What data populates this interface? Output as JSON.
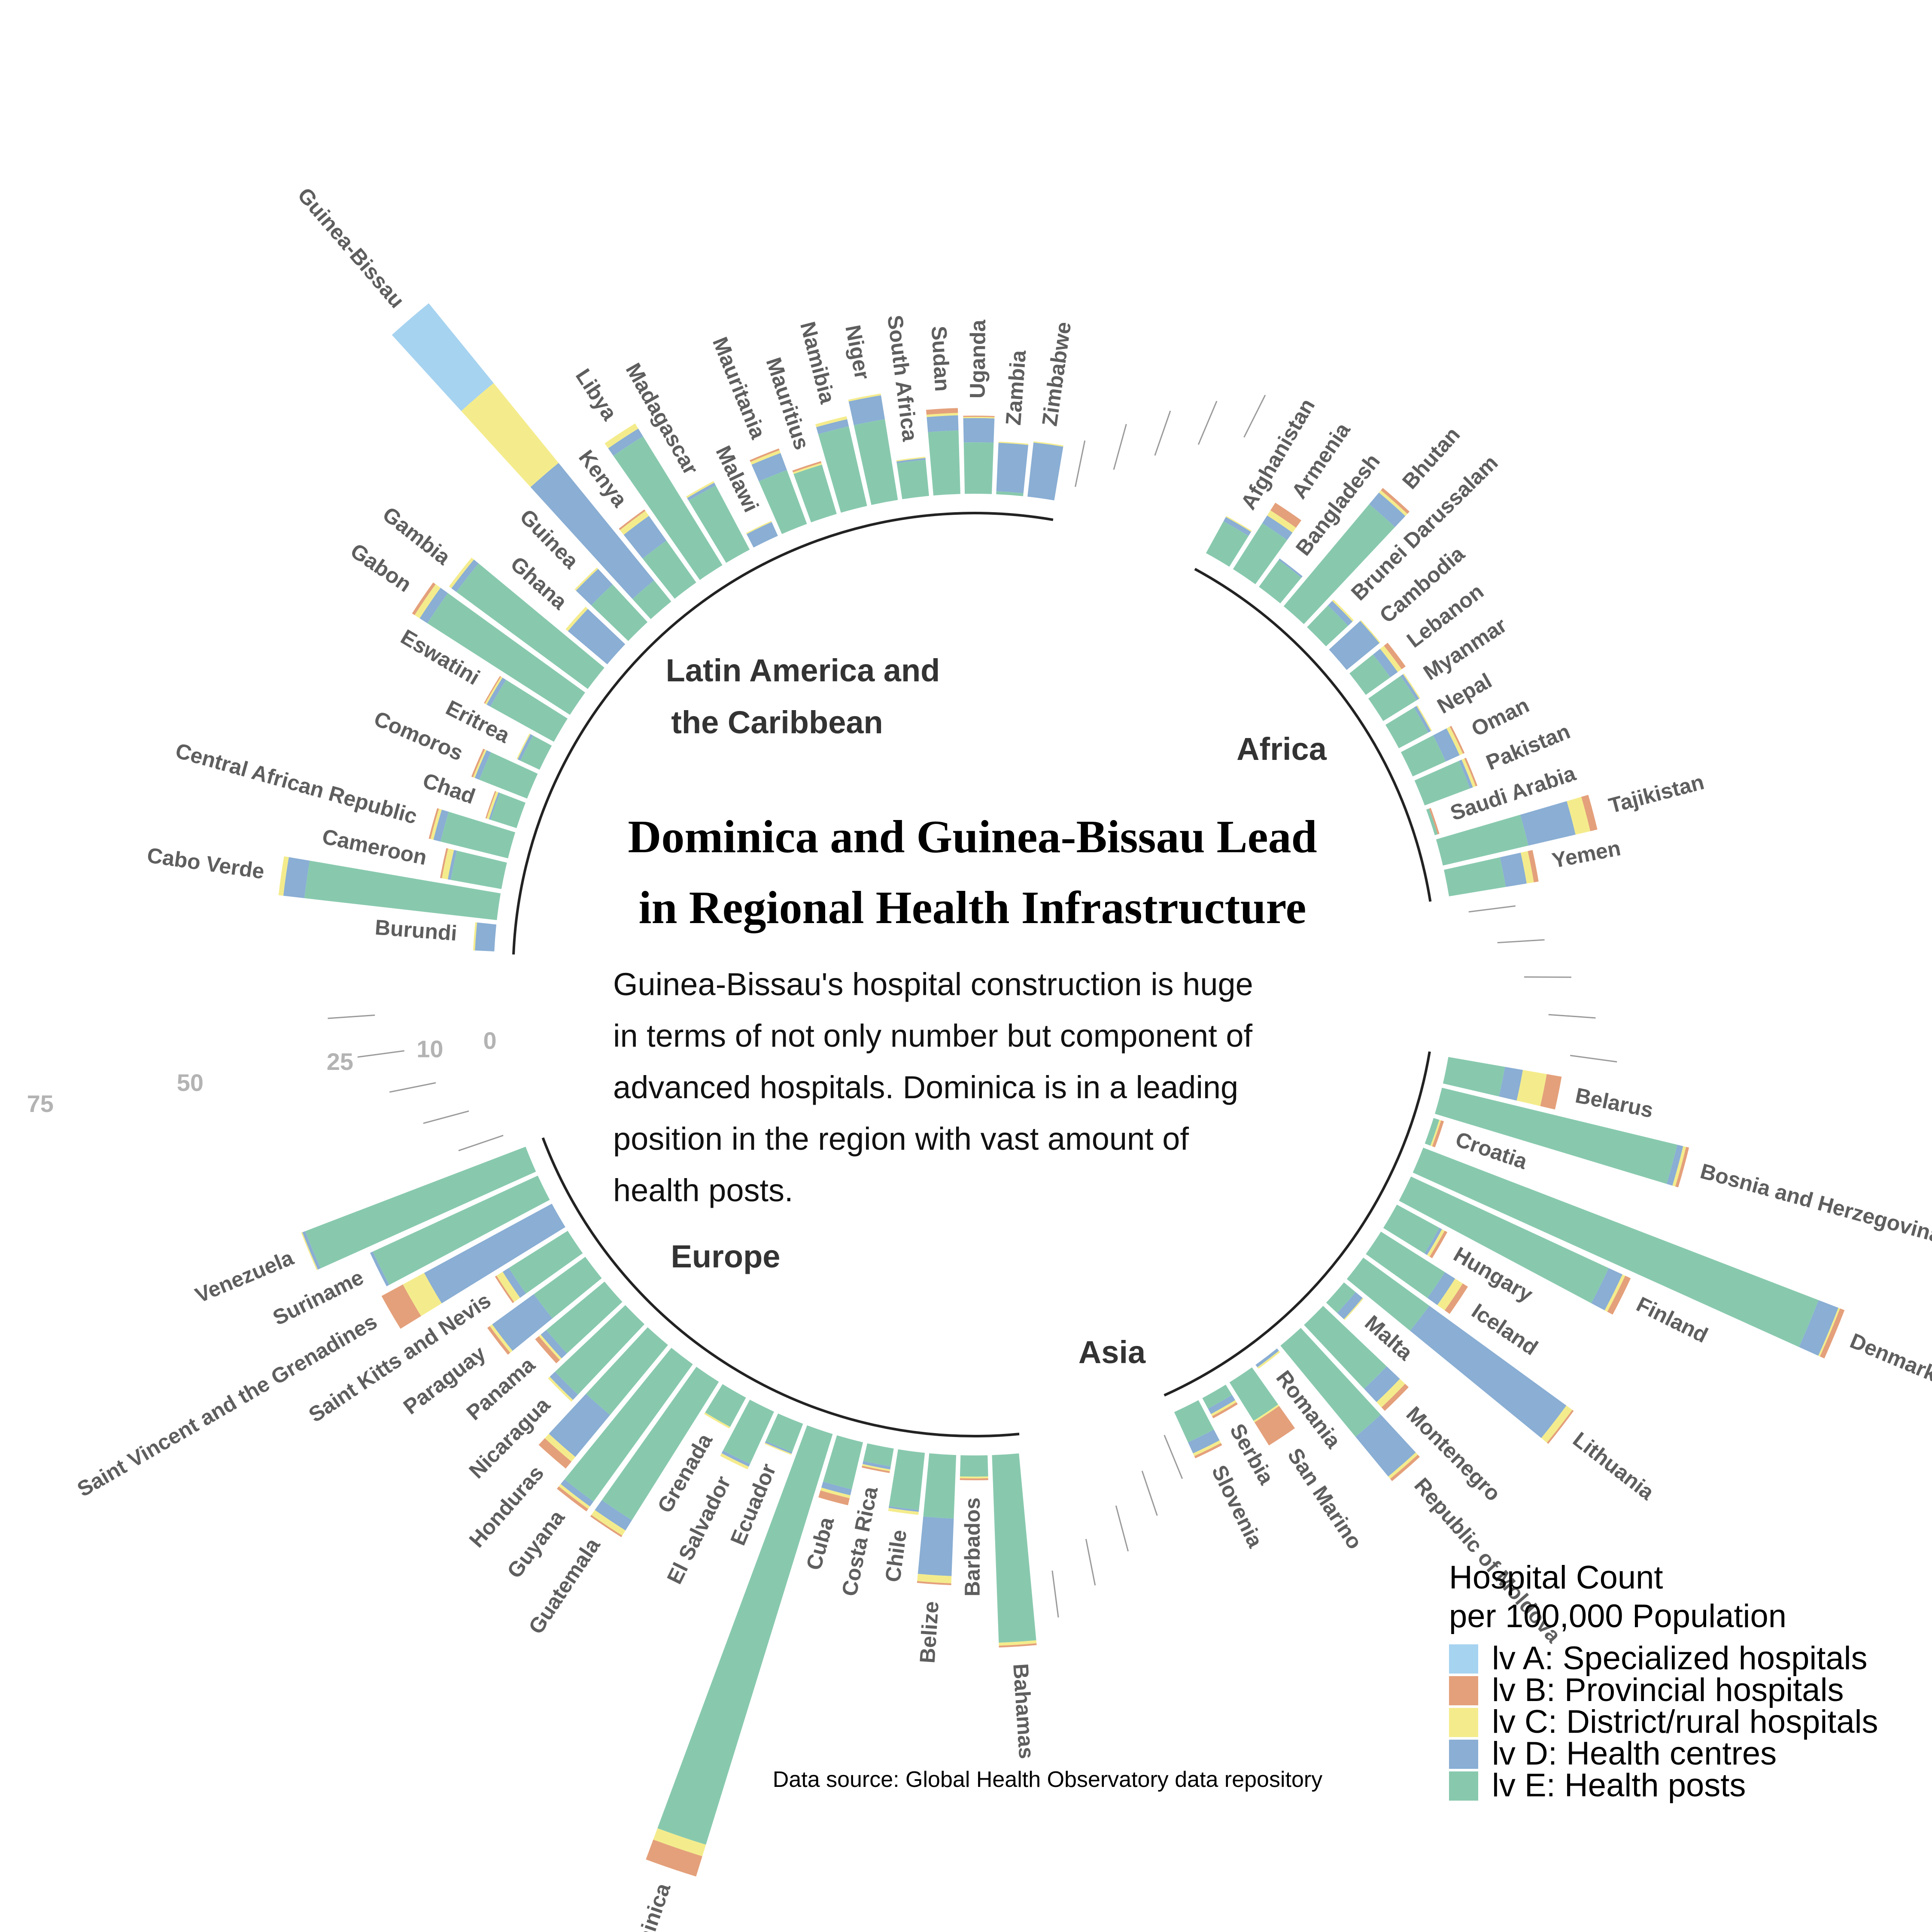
{
  "chart_data": {
    "type": "bar",
    "layout": "circular-stacked-bar",
    "title": [
      "Dominica and Guinea-Bissau Lead",
      "in Regional Health Infrastructure"
    ],
    "subtitle": [
      "Guinea-Bissau's hospital construction is huge",
      "in terms of not only number but component of",
      "advanced hospitals. Dominica is in a leading",
      "position in the region with vast amount of",
      "health posts."
    ],
    "caption": "Data source: Global Health Observatory data repository",
    "radial_ticks": [
      "0",
      "10",
      "25",
      "50",
      "75"
    ],
    "radial_tick_values": [
      0,
      10,
      25,
      50,
      75
    ],
    "legend": {
      "title": [
        "Hospital Count",
        "per 100,000 Population"
      ],
      "position": "bottom-right"
    },
    "series": [
      {
        "key": "A",
        "name": "lv A: Specialized hospitals",
        "color": "#a6d3f0"
      },
      {
        "key": "B",
        "name": "lv B: Provincial hospitals",
        "color": "#e4a07b"
      },
      {
        "key": "C",
        "name": "lv C: District/rural hospitals",
        "color": "#f4ec8c"
      },
      {
        "key": "D",
        "name": "lv D: Health centres",
        "color": "#8aaed4"
      },
      {
        "key": "E",
        "name": "lv E: Health posts",
        "color": "#88c9ae"
      }
    ],
    "groups": [
      {
        "region": "Africa",
        "countries": [
          {
            "name": "Burundi",
            "A": 0,
            "B": 0,
            "C": 0.3,
            "D": 3.2,
            "E": 0
          },
          {
            "name": "Cabo Verde",
            "A": 0,
            "B": 0,
            "C": 0.8,
            "D": 3.5,
            "E": 32
          },
          {
            "name": "Cameroon",
            "A": 0,
            "B": 0.3,
            "C": 1.0,
            "D": 0.5,
            "E": 8.5
          },
          {
            "name": "Central African Republic",
            "A": 0,
            "B": 0.3,
            "C": 0.5,
            "D": 1.2,
            "E": 11.5
          },
          {
            "name": "Chad",
            "A": 0,
            "B": 0.2,
            "C": 0.4,
            "D": 0.3,
            "E": 4.5
          },
          {
            "name": "Comoros",
            "A": 0,
            "B": 0.3,
            "C": 0.3,
            "D": 0.8,
            "E": 8.5
          },
          {
            "name": "Eritrea",
            "A": 0,
            "B": 0,
            "C": 0.2,
            "D": 0.5,
            "E": 3.5
          },
          {
            "name": "Eswatini",
            "A": 0,
            "B": 0.2,
            "C": 0.3,
            "D": 0.7,
            "E": 12
          },
          {
            "name": "Gabon",
            "A": 0,
            "B": 0.5,
            "C": 1.0,
            "D": 1.5,
            "E": 28
          },
          {
            "name": "Gambia",
            "A": 0,
            "B": 0,
            "C": 0.5,
            "D": 1.0,
            "E": 27
          },
          {
            "name": "Ghana",
            "A": 0,
            "B": 0,
            "C": 0.5,
            "D": 8.5,
            "E": 0
          },
          {
            "name": "Guinea",
            "A": 0,
            "B": 0,
            "C": 0.3,
            "D": 3.5,
            "E": 8.5
          },
          {
            "name": "Guinea-Bissau",
            "A": 17,
            "B": 0,
            "C": 17,
            "D": 25,
            "E": 4.5
          },
          {
            "name": "Kenya",
            "A": 0,
            "B": 0.3,
            "C": 1.0,
            "D": 5.0,
            "E": 8.5
          },
          {
            "name": "Libya",
            "A": 0,
            "B": 0,
            "C": 1.0,
            "D": 1.5,
            "E": 25
          },
          {
            "name": "Madagascar",
            "A": 0,
            "B": 0,
            "C": 0.3,
            "D": 0.5,
            "E": 12
          },
          {
            "name": "Malawi",
            "A": 0,
            "B": 0,
            "C": 0.2,
            "D": 2.5,
            "E": 0
          },
          {
            "name": "Mauritania",
            "A": 0,
            "B": 0.3,
            "C": 0.5,
            "D": 3.0,
            "E": 9.5
          },
          {
            "name": "Mauritius",
            "A": 0,
            "B": 0.3,
            "C": 0.3,
            "D": 0,
            "E": 8.5
          },
          {
            "name": "Namibia",
            "A": 0,
            "B": 0,
            "C": 0.5,
            "D": 1.2,
            "E": 13.5
          },
          {
            "name": "Niger",
            "A": 0,
            "B": 0,
            "C": 0.3,
            "D": 4.0,
            "E": 13.5
          },
          {
            "name": "South Africa",
            "A": 0,
            "B": 0,
            "C": 0.2,
            "D": 0.3,
            "E": 6.0
          },
          {
            "name": "Sudan",
            "A": 0,
            "B": 0.8,
            "C": 0.4,
            "D": 2.5,
            "E": 10.5
          },
          {
            "name": "Uganda",
            "A": 0,
            "B": 0.2,
            "C": 0.2,
            "D": 4.0,
            "E": 8.5
          },
          {
            "name": "Zambia",
            "A": 0,
            "B": 0,
            "C": 0.2,
            "D": 8.0,
            "E": 0.5
          },
          {
            "name": "Zimbabwe",
            "A": 0,
            "B": 0,
            "C": 0.2,
            "D": 9.0,
            "E": 0
          }
        ]
      },
      {
        "region": "Asia",
        "countries": [
          {
            "name": "Afghanistan",
            "A": 0,
            "B": 0,
            "C": 0.2,
            "D": 0.8,
            "E": 6.0
          },
          {
            "name": "Armenia",
            "A": 0,
            "B": 1.5,
            "C": 1.0,
            "D": 1.5,
            "E": 9.0
          },
          {
            "name": "Bangladesh",
            "A": 0,
            "B": 0,
            "C": 0,
            "D": 0.3,
            "E": 5.5
          },
          {
            "name": "Bhutan",
            "A": 0,
            "B": 0.5,
            "C": 0.5,
            "D": 2.5,
            "E": 22
          },
          {
            "name": "Brunei Darussalam",
            "A": 0,
            "B": 0,
            "C": 0.3,
            "D": 1.0,
            "E": 5.0
          },
          {
            "name": "Cambodia",
            "A": 0,
            "B": 0,
            "C": 0.2,
            "D": 7.0,
            "E": 0
          },
          {
            "name": "Lebanon",
            "A": 0,
            "B": 0.8,
            "C": 0.8,
            "D": 1.5,
            "E": 5.0
          },
          {
            "name": "Myanmar",
            "A": 0,
            "B": 0,
            "C": 0.2,
            "D": 0.5,
            "E": 6.5
          },
          {
            "name": "Nepal",
            "A": 0,
            "B": 0,
            "C": 0.2,
            "D": 0.5,
            "E": 5.5
          },
          {
            "name": "Oman",
            "A": 0,
            "B": 0.3,
            "C": 0.6,
            "D": 2.5,
            "E": 6.0
          },
          {
            "name": "Pakistan",
            "A": 0,
            "B": 0.3,
            "C": 0.5,
            "D": 0.5,
            "E": 8.0
          },
          {
            "name": "Saudi Arabia",
            "A": 0,
            "B": 0.3,
            "C": 0,
            "D": 0,
            "E": 0.5
          },
          {
            "name": "Tajikistan",
            "A": 0,
            "B": 1.2,
            "C": 2.5,
            "D": 8.0,
            "E": 14.5
          },
          {
            "name": "Yemen",
            "A": 0,
            "B": 0.8,
            "C": 1.2,
            "D": 3.5,
            "E": 9.5
          }
        ]
      },
      {
        "region": "Europe",
        "countries": [
          {
            "name": "Belarus",
            "A": 0,
            "B": 2.5,
            "C": 4.0,
            "D": 3.0,
            "E": 9.5
          },
          {
            "name": "Bosnia and Herzegovina",
            "A": 0,
            "B": 0.5,
            "C": 0.5,
            "D": 1.0,
            "E": 40
          },
          {
            "name": "Croatia",
            "A": 0,
            "B": 0.5,
            "C": 0.3,
            "D": 0,
            "E": 1.0
          },
          {
            "name": "Denmark",
            "A": 0,
            "B": 0.8,
            "C": 0.3,
            "D": 3.5,
            "E": 70
          },
          {
            "name": "Finland",
            "A": 0,
            "B": 1.0,
            "C": 0.5,
            "D": 2.5,
            "E": 36
          },
          {
            "name": "Hungary",
            "A": 0,
            "B": 0.5,
            "C": 0.5,
            "D": 0.5,
            "E": 8.0
          },
          {
            "name": "Iceland",
            "A": 0,
            "B": 1.0,
            "C": 1.5,
            "D": 2.0,
            "E": 12.5
          },
          {
            "name": "Lithuania",
            "A": 0,
            "B": 0.3,
            "C": 1.2,
            "D": 28,
            "E": 13.5
          },
          {
            "name": "Malta",
            "A": 0,
            "B": 0,
            "C": 0.2,
            "D": 1.5,
            "E": 2.5
          },
          {
            "name": "Montenegro",
            "A": 0,
            "B": 0.8,
            "C": 1.2,
            "D": 3.0,
            "E": 14.5
          },
          {
            "name": "Republic of Moldova",
            "A": 0,
            "B": 0.5,
            "C": 0.5,
            "D": 8.5,
            "E": 19.5
          },
          {
            "name": "Romania",
            "A": 0,
            "B": 0,
            "C": 0.3,
            "D": 0.5,
            "E": 0
          },
          {
            "name": "San Marino",
            "A": 0,
            "B": 4.5,
            "C": 0.3,
            "D": 0,
            "E": 7.5
          },
          {
            "name": "Serbia",
            "A": 0,
            "B": 0.4,
            "C": 0.4,
            "D": 1.0,
            "E": 2.0
          },
          {
            "name": "Slovenia",
            "A": 0,
            "B": 0.4,
            "C": 0.5,
            "D": 2.0,
            "E": 5.5
          }
        ]
      },
      {
        "region": "Latin America and the Caribbean",
        "countries": [
          {
            "name": "Bahamas",
            "A": 0,
            "B": 0.3,
            "C": 0.5,
            "D": 0,
            "E": 31
          },
          {
            "name": "Barbados",
            "A": 0,
            "B": 0.3,
            "C": 0.3,
            "D": 0,
            "E": 3.5
          },
          {
            "name": "Belize",
            "A": 0,
            "B": 0.3,
            "C": 1.2,
            "D": 9.5,
            "E": 10.5
          },
          {
            "name": "Chile",
            "A": 0,
            "B": 0,
            "C": 0.5,
            "D": 0.3,
            "E": 9.5
          },
          {
            "name": "Costa Rica",
            "A": 0,
            "B": 0.3,
            "C": 0.3,
            "D": 0.5,
            "E": 3.0
          },
          {
            "name": "Cuba",
            "A": 0,
            "B": 1.2,
            "C": 0.5,
            "D": 1.0,
            "E": 8.0
          },
          {
            "name": "Dominica",
            "A": 0,
            "B": 3.5,
            "C": 2.0,
            "D": 0,
            "E": 71
          },
          {
            "name": "Ecuador",
            "A": 0,
            "B": 0,
            "C": 0.2,
            "D": 0.3,
            "E": 5.0
          },
          {
            "name": "El Salvador",
            "A": 0,
            "B": 0,
            "C": 0.5,
            "D": 0.5,
            "E": 9.5
          },
          {
            "name": "Grenada",
            "A": 0,
            "B": 0,
            "C": 0.3,
            "D": 0,
            "E": 5.5
          },
          {
            "name": "Guatemala",
            "A": 0,
            "B": 0.3,
            "C": 1.0,
            "D": 2.0,
            "E": 27
          },
          {
            "name": "Guyana",
            "A": 0,
            "B": 0.5,
            "C": 0.5,
            "D": 1.0,
            "E": 28
          },
          {
            "name": "Honduras",
            "A": 0,
            "B": 1.5,
            "C": 1.0,
            "D": 9.0,
            "E": 15
          },
          {
            "name": "Nicaragua",
            "A": 0,
            "B": 0,
            "C": 0.4,
            "D": 1.2,
            "E": 16
          },
          {
            "name": "Panama",
            "A": 0,
            "B": 0.8,
            "C": 0.4,
            "D": 1.2,
            "E": 12.5
          },
          {
            "name": "Paraguay",
            "A": 0,
            "B": 0.5,
            "C": 0.5,
            "D": 8.5,
            "E": 10.5
          },
          {
            "name": "Saint Kitts and Nevis",
            "A": 0,
            "B": 0.3,
            "C": 1.2,
            "D": 1.2,
            "E": 11.5
          },
          {
            "name": "Saint Vincent and the Grenadines",
            "A": 0,
            "B": 4.0,
            "C": 4.0,
            "D": 24,
            "E": 0
          },
          {
            "name": "Suriname",
            "A": 0,
            "B": 0,
            "C": 0,
            "D": 0.5,
            "E": 30
          },
          {
            "name": "Venezuela",
            "A": 0,
            "B": 0,
            "C": 0.2,
            "D": 0.5,
            "E": 39
          }
        ]
      }
    ]
  }
}
